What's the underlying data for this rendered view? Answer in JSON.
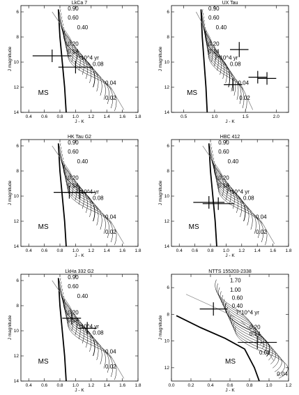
{
  "chart_data": [
    {
      "type": "line",
      "title": "LkCa 7",
      "xlabel": "J - K",
      "ylabel": "J magnitude",
      "xlim": [
        0.3,
        1.8
      ],
      "ylim": [
        14,
        5.5
      ],
      "xticks": [
        "0.4",
        "0.6",
        "0.8",
        "1.0",
        "1.2",
        "1.4",
        "1.6",
        "1.8"
      ],
      "yticks": [
        "6",
        "8",
        "10",
        "12",
        "14"
      ],
      "mass_labels": [
        {
          "text": "0.90",
          "x": 0.9,
          "y": 5.9
        },
        {
          "text": "0.60",
          "x": 0.9,
          "y": 6.6
        },
        {
          "text": "0.40",
          "x": 1.02,
          "y": 7.4
        },
        {
          "text": "0.20",
          "x": 0.9,
          "y": 8.7
        },
        {
          "text": "0.14",
          "x": 0.9,
          "y": 9.3
        },
        {
          "text": "0.08",
          "x": 1.22,
          "y": 10.3
        },
        {
          "text": "0.04",
          "x": 1.38,
          "y": 11.8
        },
        {
          "text": "0.02",
          "x": 1.38,
          "y": 13.0
        }
      ],
      "isochrone_label": {
        "text": "7*10^4  yr",
        "x": 1.0,
        "y": 9.8
      },
      "ms_label": {
        "text": "MS",
        "x": 0.52,
        "y": 12.6
      },
      "points": [
        {
          "x": 0.7,
          "y": 9.5,
          "xerr": 0.25,
          "yerr": 0.5
        },
        {
          "x": 1.0,
          "y": 10.4,
          "xerr": 0.22,
          "yerr": 0.5
        }
      ]
    },
    {
      "type": "line",
      "title": "UX Tau",
      "xlabel": "J - K",
      "ylabel": "J magnitude",
      "xlim": [
        0.3,
        2.2
      ],
      "ylim": [
        14,
        5.5
      ],
      "xticks": [
        "0.5",
        "1.0",
        "1.5",
        "2.0"
      ],
      "yticks": [
        "6",
        "8",
        "10",
        "12",
        "14"
      ],
      "mass_labels": [
        {
          "text": "0.90",
          "x": 0.9,
          "y": 5.9
        },
        {
          "text": "0.60",
          "x": 0.9,
          "y": 6.6
        },
        {
          "text": "0.40",
          "x": 1.02,
          "y": 7.4
        },
        {
          "text": "0.20",
          "x": 0.9,
          "y": 8.7
        },
        {
          "text": "0.14",
          "x": 0.9,
          "y": 9.3
        },
        {
          "text": "0.08",
          "x": 1.25,
          "y": 10.3
        },
        {
          "text": "0.04",
          "x": 1.38,
          "y": 11.8
        },
        {
          "text": "0.02",
          "x": 1.4,
          "y": 13.0
        }
      ],
      "isochrone_label": {
        "text": "7*10^4  yr",
        "x": 1.0,
        "y": 9.8
      },
      "ms_label": {
        "text": "MS",
        "x": 0.55,
        "y": 12.6
      },
      "points": [
        {
          "x": 1.4,
          "y": 9.0,
          "xerr": 0.15,
          "yerr": 0.6
        },
        {
          "x": 1.3,
          "y": 11.8,
          "xerr": 0.15,
          "yerr": 0.5
        },
        {
          "x": 1.7,
          "y": 11.2,
          "xerr": 0.15,
          "yerr": 0.5
        },
        {
          "x": 1.85,
          "y": 11.3,
          "xerr": 0.15,
          "yerr": 0.5
        }
      ]
    },
    {
      "type": "line",
      "title": "HK Tau G2",
      "xlabel": "J - K",
      "ylabel": "J magnitude",
      "xlim": [
        0.3,
        1.8
      ],
      "ylim": [
        14,
        5.5
      ],
      "xticks": [
        "0.4",
        "0.6",
        "0.8",
        "1.0",
        "1.2",
        "1.4",
        "1.6",
        "1.8"
      ],
      "yticks": [
        "6",
        "8",
        "10",
        "12",
        "14"
      ],
      "mass_labels": [
        {
          "text": "0.90",
          "x": 0.9,
          "y": 5.9
        },
        {
          "text": "0.60",
          "x": 0.9,
          "y": 6.6
        },
        {
          "text": "0.40",
          "x": 1.02,
          "y": 7.4
        },
        {
          "text": "0.20",
          "x": 0.9,
          "y": 8.7
        },
        {
          "text": "0.14",
          "x": 0.9,
          "y": 9.3
        },
        {
          "text": "0.08",
          "x": 1.22,
          "y": 10.3
        },
        {
          "text": "0.04",
          "x": 1.38,
          "y": 11.8
        },
        {
          "text": "0.02",
          "x": 1.38,
          "y": 13.0
        }
      ],
      "isochrone_label": {
        "text": "7*10^4  yr",
        "x": 1.0,
        "y": 9.8
      },
      "ms_label": {
        "text": "MS",
        "x": 0.52,
        "y": 12.6
      },
      "points": [
        {
          "x": 0.92,
          "y": 9.7,
          "xerr": 0.2,
          "yerr": 0.5
        },
        {
          "x": 1.05,
          "y": 9.7,
          "xerr": 0.2,
          "yerr": 0.5
        }
      ]
    },
    {
      "type": "line",
      "title": "HBC 412",
      "xlabel": "J - K",
      "ylabel": "J magnitude",
      "xlim": [
        0.3,
        1.8
      ],
      "ylim": [
        14,
        5.5
      ],
      "xticks": [
        "0.4",
        "0.6",
        "0.8",
        "1.0",
        "1.2",
        "1.4",
        "1.6",
        "1.8"
      ],
      "yticks": [
        "6",
        "8",
        "10",
        "12",
        "14"
      ],
      "mass_labels": [
        {
          "text": "0.90",
          "x": 0.9,
          "y": 5.9
        },
        {
          "text": "0.60",
          "x": 0.9,
          "y": 6.6
        },
        {
          "text": "0.40",
          "x": 1.02,
          "y": 7.4
        },
        {
          "text": "0.20",
          "x": 0.9,
          "y": 8.7
        },
        {
          "text": "0.14",
          "x": 0.9,
          "y": 9.3
        },
        {
          "text": "0.08",
          "x": 1.22,
          "y": 10.3
        },
        {
          "text": "0.04",
          "x": 1.38,
          "y": 11.8
        },
        {
          "text": "0.02",
          "x": 1.38,
          "y": 13.0
        }
      ],
      "isochrone_label": {
        "text": "7*10^4  yr",
        "x": 1.0,
        "y": 9.8
      },
      "ms_label": {
        "text": "MS",
        "x": 0.52,
        "y": 12.6
      },
      "points": [
        {
          "x": 0.78,
          "y": 10.5,
          "xerr": 0.2,
          "yerr": 0.5
        },
        {
          "x": 0.9,
          "y": 10.6,
          "xerr": 0.2,
          "yerr": 0.5
        }
      ]
    },
    {
      "type": "line",
      "title": "LkHa 332 G2",
      "xlabel": "J - K",
      "ylabel": "J magnitude",
      "xlim": [
        0.3,
        1.8
      ],
      "ylim": [
        14,
        5.5
      ],
      "xticks": [
        "0.4",
        "0.6",
        "0.8",
        "1.0",
        "1.2",
        "1.4",
        "1.6",
        "1.8"
      ],
      "yticks": [
        "6",
        "8",
        "10",
        "12",
        "14"
      ],
      "mass_labels": [
        {
          "text": "0.90",
          "x": 0.9,
          "y": 5.9
        },
        {
          "text": "0.60",
          "x": 0.9,
          "y": 6.6
        },
        {
          "text": "0.40",
          "x": 1.02,
          "y": 7.4
        },
        {
          "text": "0.20",
          "x": 0.9,
          "y": 8.7
        },
        {
          "text": "0.14",
          "x": 0.9,
          "y": 9.3
        },
        {
          "text": "0.08",
          "x": 1.22,
          "y": 10.3
        },
        {
          "text": "0.04",
          "x": 1.38,
          "y": 11.8
        },
        {
          "text": "0.02",
          "x": 1.38,
          "y": 13.0
        }
      ],
      "isochrone_label": {
        "text": "7*10^4  yr",
        "x": 1.0,
        "y": 9.8
      },
      "ms_label": {
        "text": "MS",
        "x": 0.52,
        "y": 12.6
      },
      "points": [
        {
          "x": 0.95,
          "y": 9.0,
          "xerr": 0.12,
          "yerr": 0.5
        },
        {
          "x": 1.15,
          "y": 9.8,
          "xerr": 0.12,
          "yerr": 0.5
        }
      ]
    },
    {
      "type": "line",
      "title": "NTTS 155203-2338",
      "xlabel": "J - K",
      "ylabel": "J magnitude",
      "xlim": [
        0.0,
        1.2
      ],
      "ylim": [
        13,
        5.0
      ],
      "xticks": [
        "0.0",
        "0.2",
        "0.4",
        "0.6",
        "0.8",
        "1.0",
        "1.2"
      ],
      "yticks": [
        "6",
        "8",
        "10",
        "12"
      ],
      "mass_labels": [
        {
          "text": "1.70",
          "x": 0.6,
          "y": 5.6
        },
        {
          "text": "1.00",
          "x": 0.6,
          "y": 6.3
        },
        {
          "text": "0.60",
          "x": 0.62,
          "y": 6.9
        },
        {
          "text": "0.40",
          "x": 0.62,
          "y": 7.5
        },
        {
          "text": "0.20",
          "x": 0.8,
          "y": 9.1
        },
        {
          "text": "0.14",
          "x": 0.8,
          "y": 9.6
        },
        {
          "text": "0.08",
          "x": 0.9,
          "y": 11.0
        },
        {
          "text": "0.04",
          "x": 1.08,
          "y": 12.6
        }
      ],
      "isochrone_label": {
        "text": "7*10^4  yr",
        "x": 0.66,
        "y": 8.0
      },
      "ms_label": {
        "text": "MS",
        "x": 0.55,
        "y": 11.7
      },
      "points": [
        {
          "x": 0.43,
          "y": 7.6,
          "xerr": 0.14,
          "yerr": 0.5
        },
        {
          "x": 0.88,
          "y": 10.1,
          "xerr": 0.2,
          "yerr": 0.5
        }
      ]
    }
  ]
}
